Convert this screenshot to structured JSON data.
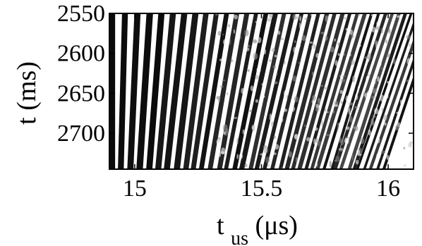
{
  "chart_data": {
    "type": "heatmap",
    "title": "",
    "colormap": "grayscale",
    "xlabel": {
      "main": "t",
      "subscript": "us",
      "unit": " (μs)"
    },
    "ylabel": "t (ms)",
    "xlim": [
      14.9,
      16.1
    ],
    "ylim": [
      2550,
      2745
    ],
    "y_reversed": true,
    "x_ticks": [
      {
        "value": 15,
        "label": "15"
      },
      {
        "value": 15.5,
        "label": "15.5"
      },
      {
        "value": 16,
        "label": "16"
      }
    ],
    "y_ticks": [
      {
        "value": 2550,
        "label": "2550"
      },
      {
        "value": 2600,
        "label": "2600"
      },
      {
        "value": 2650,
        "label": "2650"
      },
      {
        "value": 2700,
        "label": "2700"
      }
    ],
    "grid": false,
    "pattern": {
      "description_units": "fringe period in microseconds, slope in microseconds of shift per millisecond",
      "start_period_us": 0.05,
      "end_period_us": 0.024,
      "start_slope_us_per_ms": 0.0,
      "end_slope_us_per_ms": -0.0011
    }
  }
}
